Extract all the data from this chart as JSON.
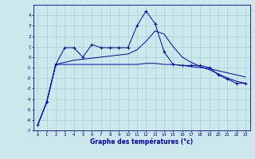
{
  "xlabel": "Graphe des températures (°c)",
  "background_color": "#cce8ec",
  "grid_color": "#99cccc",
  "line_color": "#0000bb",
  "x_values": [
    0,
    1,
    2,
    3,
    4,
    5,
    6,
    7,
    8,
    9,
    10,
    11,
    12,
    13,
    14,
    15,
    16,
    17,
    18,
    19,
    20,
    21,
    22,
    23
  ],
  "series_marked": [
    -6.5,
    -4.3,
    -0.7,
    0.9,
    0.9,
    0.0,
    1.2,
    0.9,
    0.9,
    0.9,
    0.9,
    3.0,
    4.4,
    3.2,
    0.5,
    -0.7,
    -0.8,
    -0.8,
    -0.8,
    -1.0,
    -1.7,
    -2.1,
    -2.5,
    -2.5
  ],
  "series_smooth": [
    -6.5,
    -4.3,
    -0.7,
    -0.5,
    -0.3,
    -0.2,
    -0.1,
    0.0,
    0.1,
    0.2,
    0.3,
    0.7,
    1.5,
    2.5,
    2.2,
    1.0,
    0.0,
    -0.5,
    -0.9,
    -1.2,
    -1.6,
    -2.0,
    -2.3,
    -2.5
  ],
  "series_flat": [
    -6.5,
    -4.3,
    -0.7,
    -0.7,
    -0.7,
    -0.7,
    -0.7,
    -0.7,
    -0.7,
    -0.7,
    -0.7,
    -0.7,
    -0.6,
    -0.6,
    -0.7,
    -0.7,
    -0.8,
    -0.9,
    -1.0,
    -1.1,
    -1.3,
    -1.5,
    -1.7,
    -1.9
  ],
  "ylim": [
    -7,
    5
  ],
  "yticks": [
    -7,
    -6,
    -5,
    -4,
    -3,
    -2,
    -1,
    0,
    1,
    2,
    3,
    4
  ],
  "xlim": [
    -0.5,
    23.5
  ],
  "xticks": [
    0,
    1,
    2,
    3,
    4,
    5,
    6,
    7,
    8,
    9,
    10,
    11,
    12,
    13,
    14,
    15,
    16,
    17,
    18,
    19,
    20,
    21,
    22,
    23
  ]
}
